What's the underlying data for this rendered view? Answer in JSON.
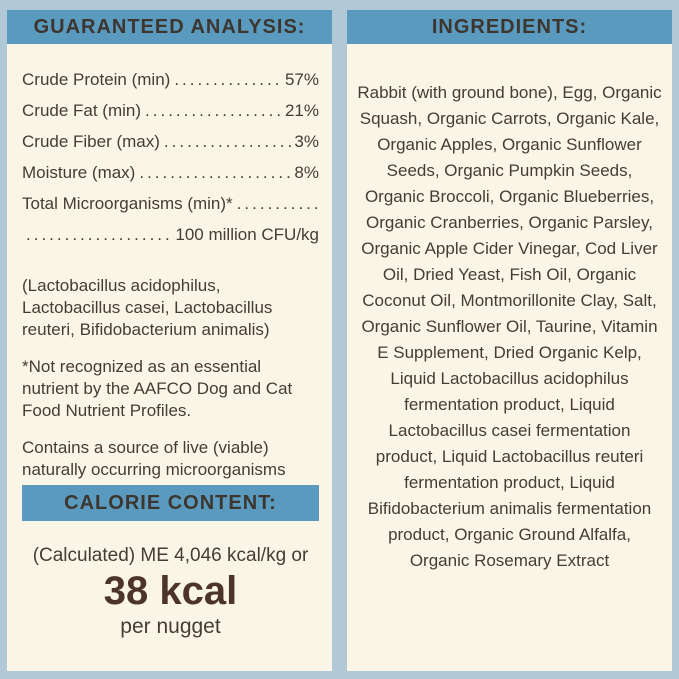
{
  "colors": {
    "background": "#b1c9d6",
    "panel": "#faf5e7",
    "header_bar": "#5b9abf",
    "header_text": "#3d362f",
    "body_text": "#473c33",
    "big_value_text": "#4c342a"
  },
  "guaranteed_analysis": {
    "title": "GUARANTEED ANALYSIS:",
    "dot_leader": "................................................................................",
    "rows": [
      {
        "label": "Crude Protein (min)",
        "value": "57%"
      },
      {
        "label": "Crude Fat (min)",
        "value": "21%"
      },
      {
        "label": "Crude Fiber (max)",
        "value": "3%"
      },
      {
        "label": "Moisture (max)",
        "value": "8%"
      },
      {
        "label": "Total Microorganisms (min)*",
        "value": ""
      }
    ],
    "continuation_value": "100 million CFU/kg",
    "notes": [
      "(Lactobacillus acidophilus, Lactobacillus casei, Lactobacillus reuteri, Bifidobacterium animalis)",
      "*Not recognized as an essential nutrient by the AAFCO Dog and Cat Food Nutrient Profiles.",
      "Contains a source of live (viable) naturally occurring microorganisms"
    ]
  },
  "calorie_content": {
    "title": "CALORIE CONTENT:",
    "line1": "(Calculated) ME 4,046 kcal/kg or",
    "big_value": "38 kcal",
    "unit": "per nugget"
  },
  "ingredients": {
    "title": "INGREDIENTS:",
    "text": "Rabbit (with ground bone), Egg, Organic Squash, Organic Carrots, Organic Kale, Organic Apples, Organic Sunflower Seeds, Organic Pumpkin Seeds, Organic Broccoli, Organic Blueberries, Organic Cranberries, Organic Parsley, Organic Apple Cider Vinegar, Cod Liver Oil, Dried Yeast, Fish Oil, Organic Coconut Oil, Montmorillonite Clay, Salt, Organic Sunflower Oil, Taurine, Vitamin E Supplement, Dried Organic Kelp, Liquid Lactobacillus acidophilus fermentation product, Liquid Lactobacillus casei fermentation product, Liquid Lactobacillus reuteri fermentation product, Liquid Bifidobacterium animalis fermentation product, Organic Ground Alfalfa, Organic Rosemary Extract"
  }
}
